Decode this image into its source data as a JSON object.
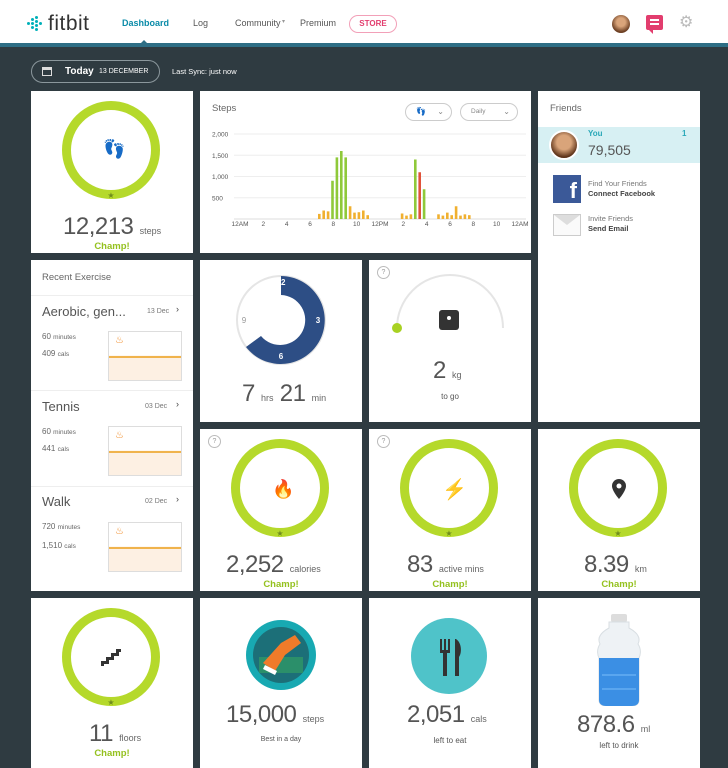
{
  "nav": {
    "logo": "fitbit",
    "items": [
      "Dashboard",
      "Log",
      "Community",
      "Premium"
    ],
    "store": "STORE"
  },
  "date_bar": {
    "today": "Today",
    "date": "13 DECEMBER",
    "sync": "Last Sync: just now"
  },
  "steps_tile": {
    "value": "12,213",
    "unit": "steps",
    "badge": "Champ!"
  },
  "steps_chart": {
    "title": "Steps",
    "period": "Daily",
    "colors": {
      "green": "#8fc93a",
      "orange": "#f0b030",
      "red": "#e0533a"
    }
  },
  "chart_data": {
    "type": "bar",
    "title": "Steps",
    "ylim": [
      0,
      2000
    ],
    "yticks": [
      "2,000",
      "1,500",
      "1,000",
      "500"
    ],
    "xticks": [
      "12AM",
      "2",
      "4",
      "6",
      "8",
      "10",
      "12PM",
      "2",
      "4",
      "6",
      "8",
      "10",
      "12AM"
    ],
    "series": [
      {
        "values": [
          120,
          200,
          180,
          900,
          1450,
          1600,
          1450,
          300,
          150,
          160,
          200,
          90,
          130,
          80,
          110,
          1400,
          1100,
          700,
          110,
          80,
          150,
          90,
          300,
          80,
          110,
          90
        ]
      }
    ]
  },
  "friends": {
    "title": "Friends",
    "you": "You",
    "you_rank": "1",
    "you_steps": "79,505",
    "facebook_top": "Find Your Friends",
    "facebook_bottom": "Connect Facebook",
    "email_top": "Invite Friends",
    "email_bottom": "Send Email"
  },
  "exercise": {
    "title": "Recent Exercise",
    "items": [
      {
        "name": "Aerobic, gen...",
        "date": "13 Dec",
        "minutes": "60",
        "min_label": "minutes",
        "cals": "409",
        "cal_label": "cals"
      },
      {
        "name": "Tennis",
        "date": "03 Dec",
        "minutes": "60",
        "min_label": "minutes",
        "cals": "441",
        "cal_label": "cals"
      },
      {
        "name": "Walk",
        "date": "02 Dec",
        "minutes": "720",
        "min_label": "minutes",
        "cals": "1,510",
        "cal_label": "cals"
      }
    ]
  },
  "sleep": {
    "hrs": "7",
    "hrs_label": "hrs",
    "min": "21",
    "min_label": "min",
    "dial": [
      "12",
      "3",
      "6",
      "9"
    ]
  },
  "weight": {
    "help": "?",
    "value": "2",
    "unit": "kg",
    "label": "to go"
  },
  "calories": {
    "help": "?",
    "value": "2,252",
    "unit": "calories",
    "badge": "Champ!"
  },
  "active": {
    "help": "?",
    "value": "83",
    "unit": "active mins",
    "badge": "Champ!"
  },
  "distance": {
    "value": "8.39",
    "unit": "km",
    "badge": "Champ!"
  },
  "floors": {
    "value": "11",
    "unit": "floors",
    "badge": "Champ!"
  },
  "best": {
    "value": "15,000",
    "unit": "steps",
    "label": "Best in a day"
  },
  "food": {
    "value": "2,051",
    "unit": "cals",
    "label": "left to eat"
  },
  "water": {
    "value": "878.6",
    "unit": "ml",
    "label": "left to drink"
  }
}
